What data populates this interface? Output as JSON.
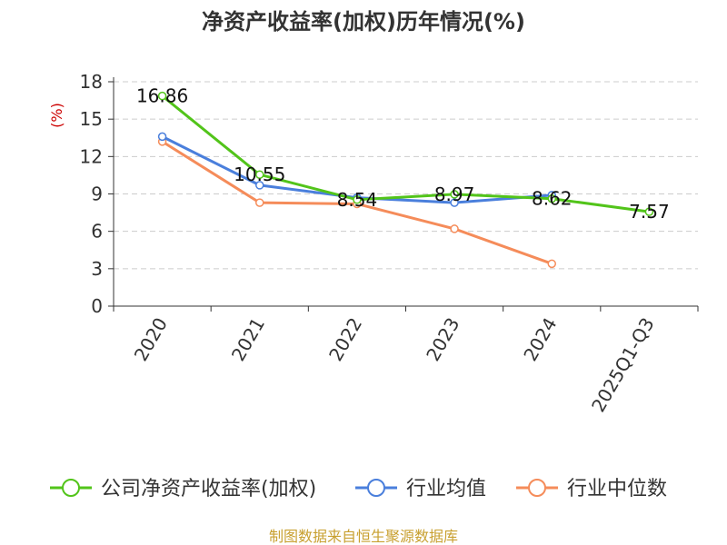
{
  "chart_data": {
    "type": "line",
    "title": "净资产收益率(加权)历年情况(%)",
    "ylabel": "(%)",
    "xlabel": "",
    "ylim": [
      0,
      18
    ],
    "yticks": [
      0,
      3,
      6,
      9,
      12,
      15,
      18
    ],
    "grid": true,
    "categories": [
      "2020",
      "2021",
      "2022",
      "2023",
      "2024",
      "2025Q1-Q3"
    ],
    "series": [
      {
        "name": "公司净资产收益率(加权)",
        "color": "#52c41a",
        "values": [
          16.86,
          10.55,
          8.54,
          8.97,
          8.62,
          7.57
        ],
        "labels": [
          "16.86",
          "10.55",
          "8.54",
          "8.97",
          "8.62",
          "7.57"
        ]
      },
      {
        "name": "行业均值",
        "color": "#4a7fdc",
        "values": [
          13.6,
          9.7,
          8.7,
          8.3,
          8.9,
          null
        ]
      },
      {
        "name": "行业中位数",
        "color": "#f58c5a",
        "values": [
          13.2,
          8.3,
          8.2,
          6.2,
          3.4,
          null
        ]
      }
    ],
    "legend_position": "bottom"
  },
  "colors": {
    "axis": "#333333",
    "grid": "#cccccc",
    "ylabel": "#cc0000",
    "source": "#c8a030"
  },
  "source": "制图数据来自恒生聚源数据库"
}
